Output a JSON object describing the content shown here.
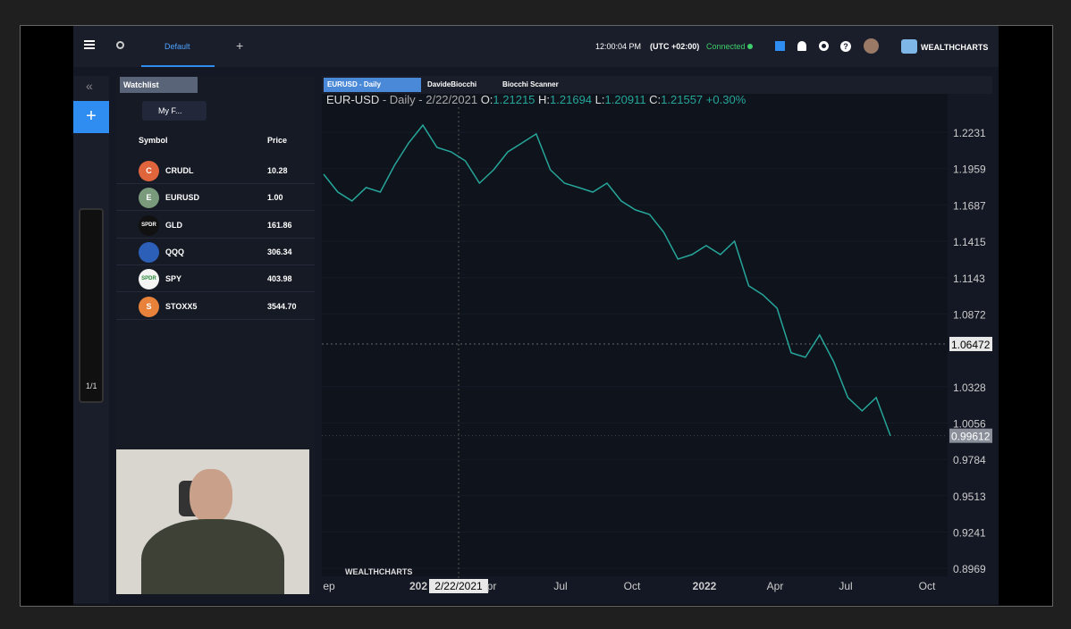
{
  "topbar": {
    "tab": "Default",
    "time": "12:00:04 PM",
    "timezone": "(UTC +02:00)",
    "status": "Connected",
    "brand": "WEALTHCHARTS"
  },
  "toolbar": {
    "page": "1/1"
  },
  "watchlist": {
    "tab": "Watchlist",
    "filter": "My F...",
    "columns": [
      "Symbol",
      "Price"
    ],
    "rows": [
      {
        "icon": "C",
        "symbol": "CRUDL",
        "price": "10.28",
        "color": "#e0643c"
      },
      {
        "icon": "E",
        "symbol": "EURUSD",
        "price": "1.00",
        "color": "#7a9a7c"
      },
      {
        "icon": "SPDR",
        "symbol": "GLD",
        "price": "161.86",
        "color": "#111111"
      },
      {
        "icon": null,
        "symbol": "QQQ",
        "price": "306.34",
        "color": "#2b5fb8"
      },
      {
        "icon": "SPDR",
        "symbol": "SPY",
        "price": "403.98",
        "color": "#f4f4f4"
      },
      {
        "icon": "S",
        "symbol": "STOXX5",
        "price": "3544.70",
        "color": "#e8823a"
      }
    ]
  },
  "chart_tabs": [
    "EURUSD - Daily",
    "DavideBiocchi",
    "Biocchi Scanner"
  ],
  "chart_data": {
    "type": "line",
    "symbol": "EUR-USD",
    "meta": " - Daily - 2/22/2021 ",
    "ohlc": [
      {
        "label": "O:",
        "value": "1.21215"
      },
      {
        "label": "H:",
        "value": "1.21694"
      },
      {
        "label": "L:",
        "value": "1.20911"
      },
      {
        "label": "C:",
        "value": "1.21557"
      }
    ],
    "change": "+0.30%",
    "color": "#26a69a",
    "values": [
      1.1917,
      1.1783,
      1.1717,
      1.1817,
      1.1783,
      1.1984,
      1.2151,
      1.2284,
      1.2117,
      1.2084,
      1.2017,
      1.185,
      1.195,
      1.2084,
      1.2151,
      1.2218,
      1.195,
      1.185,
      1.1817,
      1.1783,
      1.185,
      1.1717,
      1.165,
      1.1616,
      1.1483,
      1.1282,
      1.1316,
      1.1383,
      1.1316,
      1.1416,
      1.1082,
      1.1015,
      1.0915,
      1.0581,
      1.0548,
      1.0715,
      1.0514,
      1.0247,
      1.0147,
      1.0247,
      0.9961
    ],
    "ylim": [
      0.889,
      1.2418
    ],
    "yticks": [
      1.2231,
      1.1959,
      1.1687,
      1.1415,
      1.1143,
      1.0872,
      1.0328,
      1.0056,
      0.9784,
      0.9513,
      0.9241,
      0.8969
    ],
    "crosshair_price": 1.06472,
    "last_price": 0.99612,
    "x_labels": [
      "ep",
      "202",
      "2/22/2021",
      "pr",
      "Jul",
      "Oct",
      "2022",
      "Apr",
      "Jul",
      "Oct"
    ],
    "watermark": "WEALTHCHARTS"
  }
}
